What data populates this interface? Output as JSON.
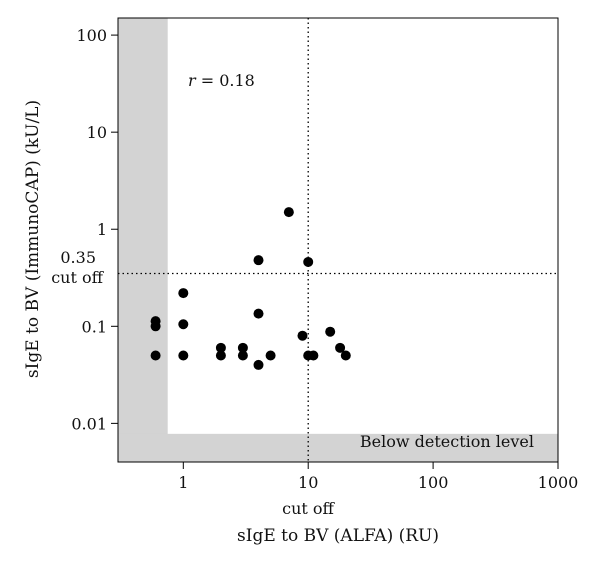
{
  "chart_data": {
    "type": "scatter",
    "title": "",
    "xlabel": "sIgE to BV (ALFA) (RU)",
    "ylabel": "sIgE to BV (ImmunoCAP) (kU/L)",
    "x_scale": "log",
    "y_scale": "log",
    "xlim": [
      0.3,
      1000
    ],
    "ylim": [
      0.004,
      150
    ],
    "x_ticks": [
      1,
      10,
      100,
      1000
    ],
    "x_tick_labels": [
      "1",
      "10",
      "100",
      "1000"
    ],
    "y_ticks": [
      0.01,
      0.1,
      1,
      10,
      100
    ],
    "y_tick_labels": [
      "0.01",
      "0.1",
      "1",
      "10",
      "100"
    ],
    "grid": false,
    "points": [
      {
        "x": 0.6,
        "y": 0.113
      },
      {
        "x": 0.6,
        "y": 0.1
      },
      {
        "x": 0.6,
        "y": 0.05
      },
      {
        "x": 1,
        "y": 0.22
      },
      {
        "x": 1,
        "y": 0.105
      },
      {
        "x": 1,
        "y": 0.05
      },
      {
        "x": 2,
        "y": 0.06
      },
      {
        "x": 2,
        "y": 0.05
      },
      {
        "x": 3,
        "y": 0.06
      },
      {
        "x": 3,
        "y": 0.05
      },
      {
        "x": 4,
        "y": 0.48
      },
      {
        "x": 4,
        "y": 0.135
      },
      {
        "x": 4,
        "y": 0.04
      },
      {
        "x": 5,
        "y": 0.05
      },
      {
        "x": 7,
        "y": 1.5
      },
      {
        "x": 9,
        "y": 0.08
      },
      {
        "x": 10,
        "y": 0.46
      },
      {
        "x": 10,
        "y": 0.05
      },
      {
        "x": 11,
        "y": 0.05
      },
      {
        "x": 15,
        "y": 0.088
      },
      {
        "x": 18,
        "y": 0.06
      },
      {
        "x": 20,
        "y": 0.05
      }
    ],
    "reference_lines": [
      {
        "axis": "x",
        "value": 10,
        "style": "dotted"
      },
      {
        "axis": "y",
        "value": 0.35,
        "style": "dotted"
      }
    ],
    "shaded_regions": [
      {
        "x_range": [
          0.3,
          0.75
        ],
        "y_range": [
          0.004,
          150
        ],
        "color": "#d3d3d3"
      },
      {
        "x_range": [
          0.3,
          1000
        ],
        "y_range": [
          0.004,
          0.0078
        ],
        "color": "#d3d3d3"
      }
    ],
    "annotations": {
      "r_symbol": "r",
      "r_value": " = 0.18",
      "below_detection": "Below detection level",
      "y_cutoff_value": "0.35",
      "y_cutoff_label": "cut off",
      "x_cutoff_label": "cut off"
    },
    "colors": {
      "points": "#000000",
      "shade": "#d3d3d3",
      "lines": "#000000"
    }
  }
}
